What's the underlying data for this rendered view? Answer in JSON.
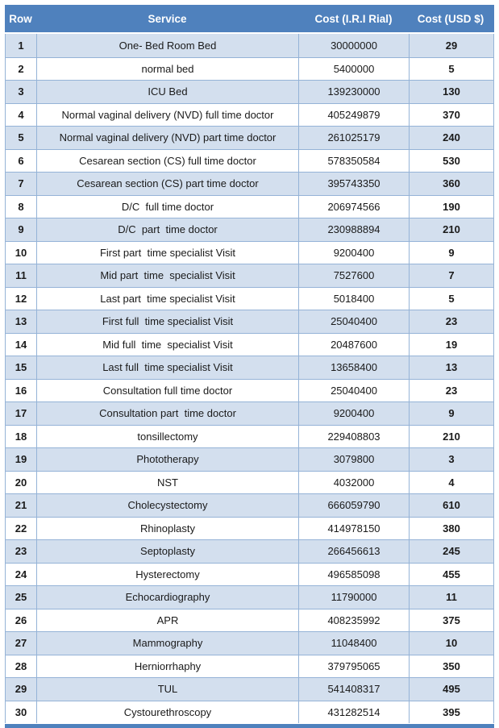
{
  "colors": {
    "header_bg": "#4f81bd",
    "band_row_bg": "#d3dfee",
    "border": "#95b3d7",
    "header_text": "#ffffff"
  },
  "table": {
    "columns": [
      "Row",
      "Service",
      "Cost (I.R.I Rial)",
      "Cost (USD $)"
    ],
    "rows": [
      [
        "1",
        "One- Bed Room Bed",
        "30000000",
        "29"
      ],
      [
        "2",
        "normal bed",
        "5400000",
        "5"
      ],
      [
        "3",
        "ICU Bed",
        "139230000",
        "130"
      ],
      [
        "4",
        "Normal vaginal delivery (NVD) full time doctor",
        "405249879",
        "370"
      ],
      [
        "5",
        "Normal vaginal delivery (NVD) part time doctor",
        "261025179",
        "240"
      ],
      [
        "6",
        "Cesarean section (CS) full time doctor",
        "578350584",
        "530"
      ],
      [
        "7",
        "Cesarean section (CS) part time doctor",
        "395743350",
        "360"
      ],
      [
        "8",
        "D/C  full time doctor",
        "206974566",
        "190"
      ],
      [
        "9",
        "D/C  part  time doctor",
        "230988894",
        "210"
      ],
      [
        "10",
        "First part  time specialist Visit",
        "9200400",
        "9"
      ],
      [
        "11",
        "Mid part  time  specialist Visit",
        "7527600",
        "7"
      ],
      [
        "12",
        "Last part  time specialist Visit",
        "5018400",
        "5"
      ],
      [
        "13",
        "First full  time specialist Visit",
        "25040400",
        "23"
      ],
      [
        "14",
        "Mid full  time  specialist Visit",
        "20487600",
        "19"
      ],
      [
        "15",
        "Last full  time specialist Visit",
        "13658400",
        "13"
      ],
      [
        "16",
        "Consultation full time doctor",
        "25040400",
        "23"
      ],
      [
        "17",
        "Consultation part  time doctor",
        "9200400",
        "9"
      ],
      [
        "18",
        "tonsillectomy",
        "229408803",
        "210"
      ],
      [
        "19",
        "Phototherapy",
        "3079800",
        "3"
      ],
      [
        "20",
        "NST",
        "4032000",
        "4"
      ],
      [
        "21",
        "Cholecystectomy",
        "666059790",
        "610"
      ],
      [
        "22",
        "Rhinoplasty",
        "414978150",
        "380"
      ],
      [
        "23",
        "Septoplasty",
        "266456613",
        "245"
      ],
      [
        "24",
        "Hysterectomy",
        "496585098",
        "455"
      ],
      [
        "25",
        "Echocardiography",
        "11790000",
        "11"
      ],
      [
        "26",
        "APR",
        "408235992",
        "375"
      ],
      [
        "27",
        "Mammography",
        "11048400",
        "10"
      ],
      [
        "28",
        "Herniorrhaphy",
        "379795065",
        "350"
      ],
      [
        "29",
        "TUL",
        "541408317",
        "495"
      ],
      [
        "30",
        "Cystourethroscopy",
        "431282514",
        "395"
      ]
    ]
  }
}
